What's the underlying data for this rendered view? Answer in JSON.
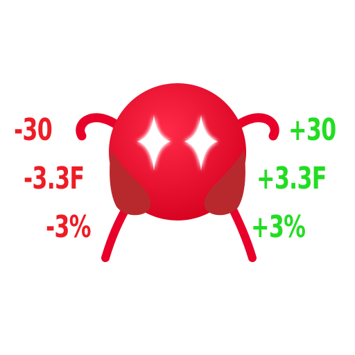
{
  "colors": {
    "negative": "#ee1c25",
    "positive": "#22dd22",
    "body": "#e8002a",
    "wing": "#b8292e",
    "eye_glow": "#ffffff"
  },
  "icons": {
    "creature": "red-blob-creature-icon",
    "eyes": "sparkle-eye-icon"
  },
  "stats_left": {
    "damage": "-30",
    "frame": "-3.3F",
    "percent": "-3%"
  },
  "stats_right": {
    "damage": "+30",
    "frame": "+3.3F",
    "percent": "+3%"
  }
}
